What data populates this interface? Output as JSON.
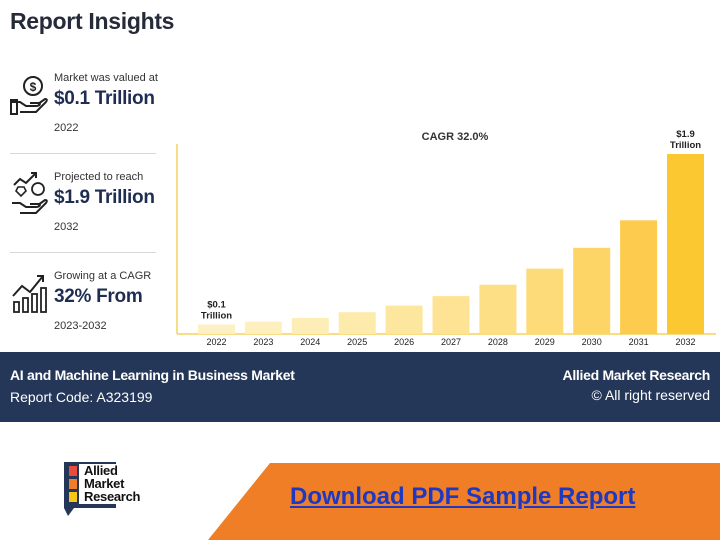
{
  "header": {
    "title": "Report Insights"
  },
  "stats": [
    {
      "label": "Market was valued at",
      "value": "$0.1 Trillion",
      "year": "2022",
      "icon": "money-hand-icon"
    },
    {
      "label": "Projected to reach",
      "value": "$1.9 Trillion",
      "year": "2032",
      "icon": "growth-hand-icon"
    },
    {
      "label": "Growing at a CAGR",
      "value": "32% From",
      "year": "2023-2032",
      "icon": "growth-chart-icon"
    }
  ],
  "chart_data": {
    "type": "bar",
    "annotation": "CAGR 32.0%",
    "categories": [
      "2022",
      "2023",
      "2024",
      "2025",
      "2026",
      "2027",
      "2028",
      "2029",
      "2030",
      "2031",
      "2032"
    ],
    "values": [
      0.1,
      0.13,
      0.17,
      0.23,
      0.3,
      0.4,
      0.52,
      0.69,
      0.91,
      1.2,
      1.9
    ],
    "data_labels": [
      {
        "index": 0,
        "line1": "$0.1",
        "line2": "Trillion"
      },
      {
        "index": 10,
        "line1": "$1.9",
        "line2": "Trillion"
      }
    ],
    "bar_colors": [
      "#fdf0c4",
      "#fdefbe",
      "#fdedb6",
      "#fdebac",
      "#fde79f",
      "#fde393",
      "#fddf86",
      "#fddb78",
      "#fdd566",
      "#fdcc4e",
      "#fbc832"
    ],
    "axis_color": "#f5d25a",
    "title": "",
    "xlabel": "",
    "ylabel": ""
  },
  "footer": {
    "market_name": "AI and Machine Learning in Business Market",
    "report_code": "Report Code: A323199",
    "brand": "Allied Market Research",
    "rights": "© All right reserved"
  },
  "bottom": {
    "logo_lines": [
      "Allied",
      "Market",
      "Research"
    ],
    "download_label": "Download PDF Sample Report"
  },
  "colors": {
    "footer_bg": "#253758",
    "orange": "#f07e26",
    "link": "#1d39c4"
  }
}
